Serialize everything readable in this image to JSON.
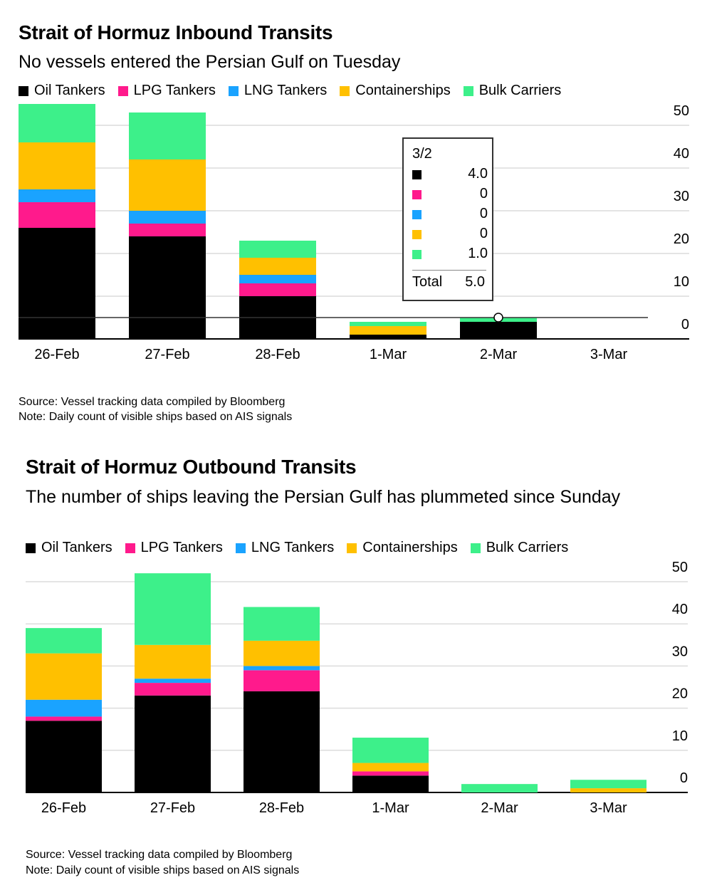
{
  "inbound": {
    "title": "Strait of Hormuz Inbound Transits",
    "subtitle": "No vessels entered the Persian Gulf on Tuesday",
    "source": "Source: Vessel tracking data compiled by Bloomberg",
    "note": "Note: Daily count of visible ships based on AIS signals",
    "tooltip": {
      "date": "3/2",
      "values": [
        "4.0",
        "0",
        "0",
        "0",
        "1.0"
      ],
      "total_label": "Total",
      "total_value": "5.0"
    }
  },
  "outbound": {
    "title": "Strait of Hormuz Outbound Transits",
    "subtitle": "The number of ships leaving the Persian Gulf has plummeted since Sunday",
    "source": "Source: Vessel tracking data compiled by Bloomberg",
    "note": "Note: Daily count of visible ships based on AIS signals"
  },
  "legend": [
    {
      "label": "Oil Tankers",
      "color": "#000000"
    },
    {
      "label": "LPG Tankers",
      "color": "#ff1a8c"
    },
    {
      "label": "LNG Tankers",
      "color": "#1aa3ff"
    },
    {
      "label": "Containerships",
      "color": "#ffc000"
    },
    {
      "label": "Bulk Carriers",
      "color": "#3df08a"
    }
  ],
  "chart_data": [
    {
      "type": "bar",
      "stacked": true,
      "title": "Strait of Hormuz Inbound Transits",
      "subtitle": "No vessels entered the Persian Gulf on Tuesday",
      "categories": [
        "26-Feb",
        "27-Feb",
        "28-Feb",
        "1-Mar",
        "2-Mar",
        "3-Mar"
      ],
      "series": [
        {
          "name": "Oil Tankers",
          "color": "#000000",
          "values": [
            26,
            24,
            10,
            1,
            4,
            0
          ]
        },
        {
          "name": "LPG Tankers",
          "color": "#ff1a8c",
          "values": [
            6,
            3,
            3,
            0,
            0,
            0
          ]
        },
        {
          "name": "LNG Tankers",
          "color": "#1aa3ff",
          "values": [
            3,
            3,
            2,
            0,
            0,
            0
          ]
        },
        {
          "name": "Containerships",
          "color": "#ffc000",
          "values": [
            11,
            12,
            4,
            2,
            0,
            0
          ]
        },
        {
          "name": "Bulk Carriers",
          "color": "#3df08a",
          "values": [
            9,
            11,
            4,
            1,
            1,
            0
          ]
        }
      ],
      "ylim": [
        0,
        50
      ],
      "yticks": [
        0,
        10,
        20,
        30,
        40,
        50
      ],
      "y_axis_position": "right",
      "grid": true,
      "legend_position": "top-left"
    },
    {
      "type": "bar",
      "stacked": true,
      "title": "Strait of Hormuz Outbound Transits",
      "subtitle": "The number of ships leaving the Persian Gulf has plummeted since Sunday",
      "categories": [
        "26-Feb",
        "27-Feb",
        "28-Feb",
        "1-Mar",
        "2-Mar",
        "3-Mar"
      ],
      "series": [
        {
          "name": "Oil Tankers",
          "color": "#000000",
          "values": [
            17,
            23,
            24,
            4,
            0,
            0
          ]
        },
        {
          "name": "LPG Tankers",
          "color": "#ff1a8c",
          "values": [
            1,
            3,
            5,
            1,
            0,
            0
          ]
        },
        {
          "name": "LNG Tankers",
          "color": "#1aa3ff",
          "values": [
            4,
            1,
            1,
            0,
            0,
            0
          ]
        },
        {
          "name": "Containerships",
          "color": "#ffc000",
          "values": [
            11,
            8,
            6,
            2,
            0,
            1
          ]
        },
        {
          "name": "Bulk Carriers",
          "color": "#3df08a",
          "values": [
            6,
            17,
            8,
            6,
            2,
            2
          ]
        }
      ],
      "ylim": [
        0,
        50
      ],
      "yticks": [
        0,
        10,
        20,
        30,
        40,
        50
      ],
      "y_axis_position": "right",
      "grid": true,
      "legend_position": "top-left"
    }
  ]
}
